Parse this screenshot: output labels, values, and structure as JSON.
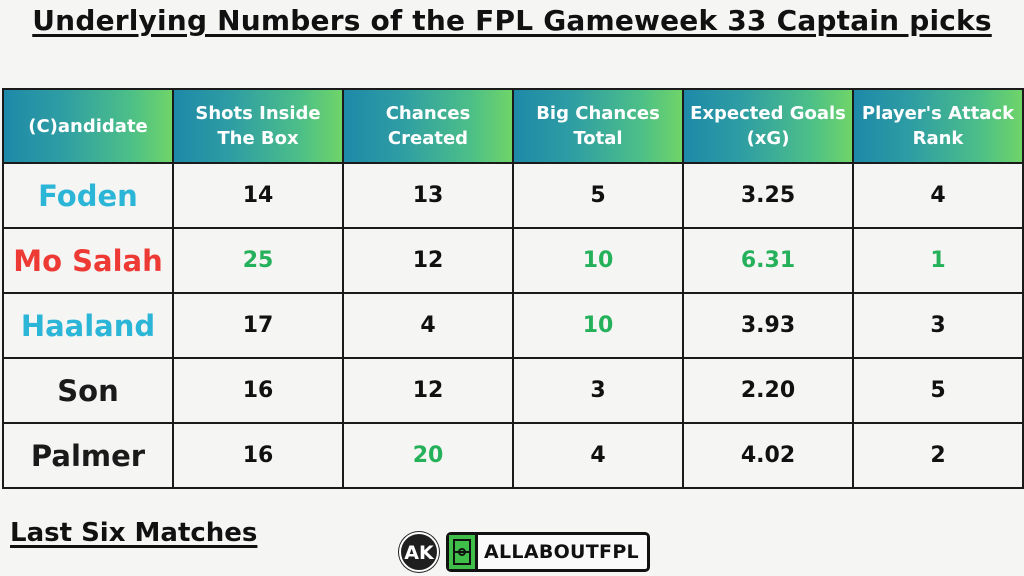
{
  "title": "Underlying Numbers of the FPL Gameweek 33 Captain picks",
  "colors": {
    "highlight": "#25b05a",
    "header_gradient_start": "#1e89a8",
    "header_gradient_end": "#6fd468",
    "name_blue": "#2bb5d6",
    "name_red": "#ee3a34",
    "name_dark": "#1a1a1a"
  },
  "table": {
    "headers": [
      {
        "line1": "(C)andidate",
        "line2": ""
      },
      {
        "line1": "Shots Inside",
        "line2": "The Box"
      },
      {
        "line1": "Chances",
        "line2": "Created"
      },
      {
        "line1": "Big Chances",
        "line2": "Total"
      },
      {
        "line1": "Expected Goals",
        "line2": "(xG)"
      },
      {
        "line1": "Player's Attack",
        "line2": "Rank"
      }
    ],
    "rows": [
      {
        "name": "Foden",
        "name_color": "#2bb5d6",
        "shots_inside_box": "14",
        "chances_created": "13",
        "big_chances": "5",
        "xg": "3.25",
        "attack_rank": "4",
        "highlights": []
      },
      {
        "name": "Mo Salah",
        "name_color": "#ee3a34",
        "shots_inside_box": "25",
        "chances_created": "12",
        "big_chances": "10",
        "xg": "6.31",
        "attack_rank": "1",
        "highlights": [
          "shots_inside_box",
          "big_chances",
          "xg",
          "attack_rank"
        ]
      },
      {
        "name": "Haaland",
        "name_color": "#2bb5d6",
        "shots_inside_box": "17",
        "chances_created": "4",
        "big_chances": "10",
        "xg": "3.93",
        "attack_rank": "3",
        "highlights": [
          "big_chances"
        ]
      },
      {
        "name": "Son",
        "name_color": "#1a1a1a",
        "shots_inside_box": "16",
        "chances_created": "12",
        "big_chances": "3",
        "xg": "2.20",
        "attack_rank": "5",
        "highlights": []
      },
      {
        "name": "Palmer",
        "name_color": "#1a1a1a",
        "shots_inside_box": "16",
        "chances_created": "20",
        "big_chances": "4",
        "xg": "4.02",
        "attack_rank": "2",
        "highlights": [
          "chances_created"
        ]
      }
    ]
  },
  "footer": {
    "subtitle": "Last Six Matches",
    "logo_text": "AK",
    "brand_text": "ALLABOUTFPL"
  }
}
